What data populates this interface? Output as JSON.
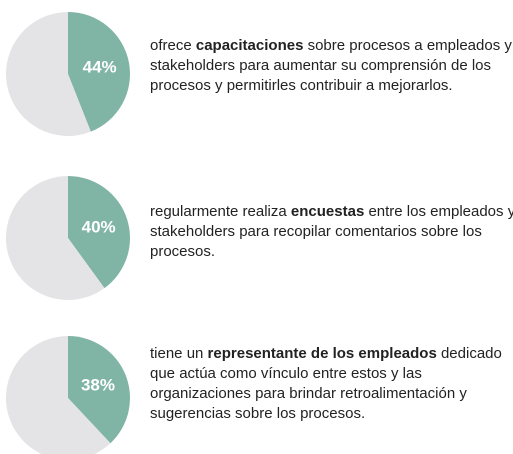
{
  "chart_data": [
    {
      "type": "pie",
      "values": [
        44,
        56
      ],
      "value_labels": [
        "44%",
        null
      ],
      "colors": [
        "#80b5a5",
        "#e4e4e6"
      ],
      "description_before": "ofrece ",
      "description_bold": "capacitaciones",
      "description_after": " sobre procesos a empleados y stakeholders para aumentar su comprensión de los procesos y permitirles contribuir a mejorarlos."
    },
    {
      "type": "pie",
      "values": [
        40,
        60
      ],
      "value_labels": [
        "40%",
        null
      ],
      "colors": [
        "#80b5a5",
        "#e4e4e6"
      ],
      "description_before": "regularmente realiza ",
      "description_bold": "encuestas",
      "description_after": " entre los empleados y stakeholders para recopilar comentarios sobre los procesos."
    },
    {
      "type": "pie",
      "values": [
        38,
        62
      ],
      "value_labels": [
        "38%",
        null
      ],
      "colors": [
        "#80b5a5",
        "#e4e4e6"
      ],
      "description_before": "tiene un ",
      "description_bold": "representante de los empleados",
      "description_after": " dedicado que actúa como vínculo entre estos y las organizaciones para brindar retroalimentación y sugerencias sobre los procesos."
    }
  ]
}
